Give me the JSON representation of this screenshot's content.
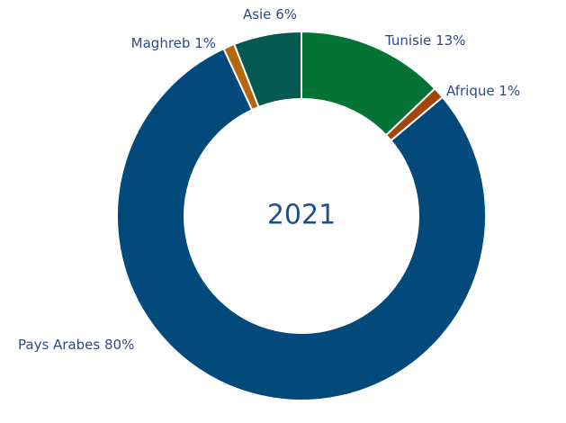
{
  "chart_data": {
    "type": "donut",
    "center_label": "2021",
    "categories": [
      "Tunisie",
      "Afrique",
      "Pays Arabes",
      "Maghreb",
      "Asie"
    ],
    "values": [
      13,
      1,
      80,
      1,
      6
    ],
    "value_labels": [
      "13%",
      "1%",
      "80%",
      "1%",
      "6%"
    ],
    "colors": [
      "#047335",
      "#a3440f",
      "#024a7c",
      "#b5670f",
      "#045a50"
    ]
  }
}
